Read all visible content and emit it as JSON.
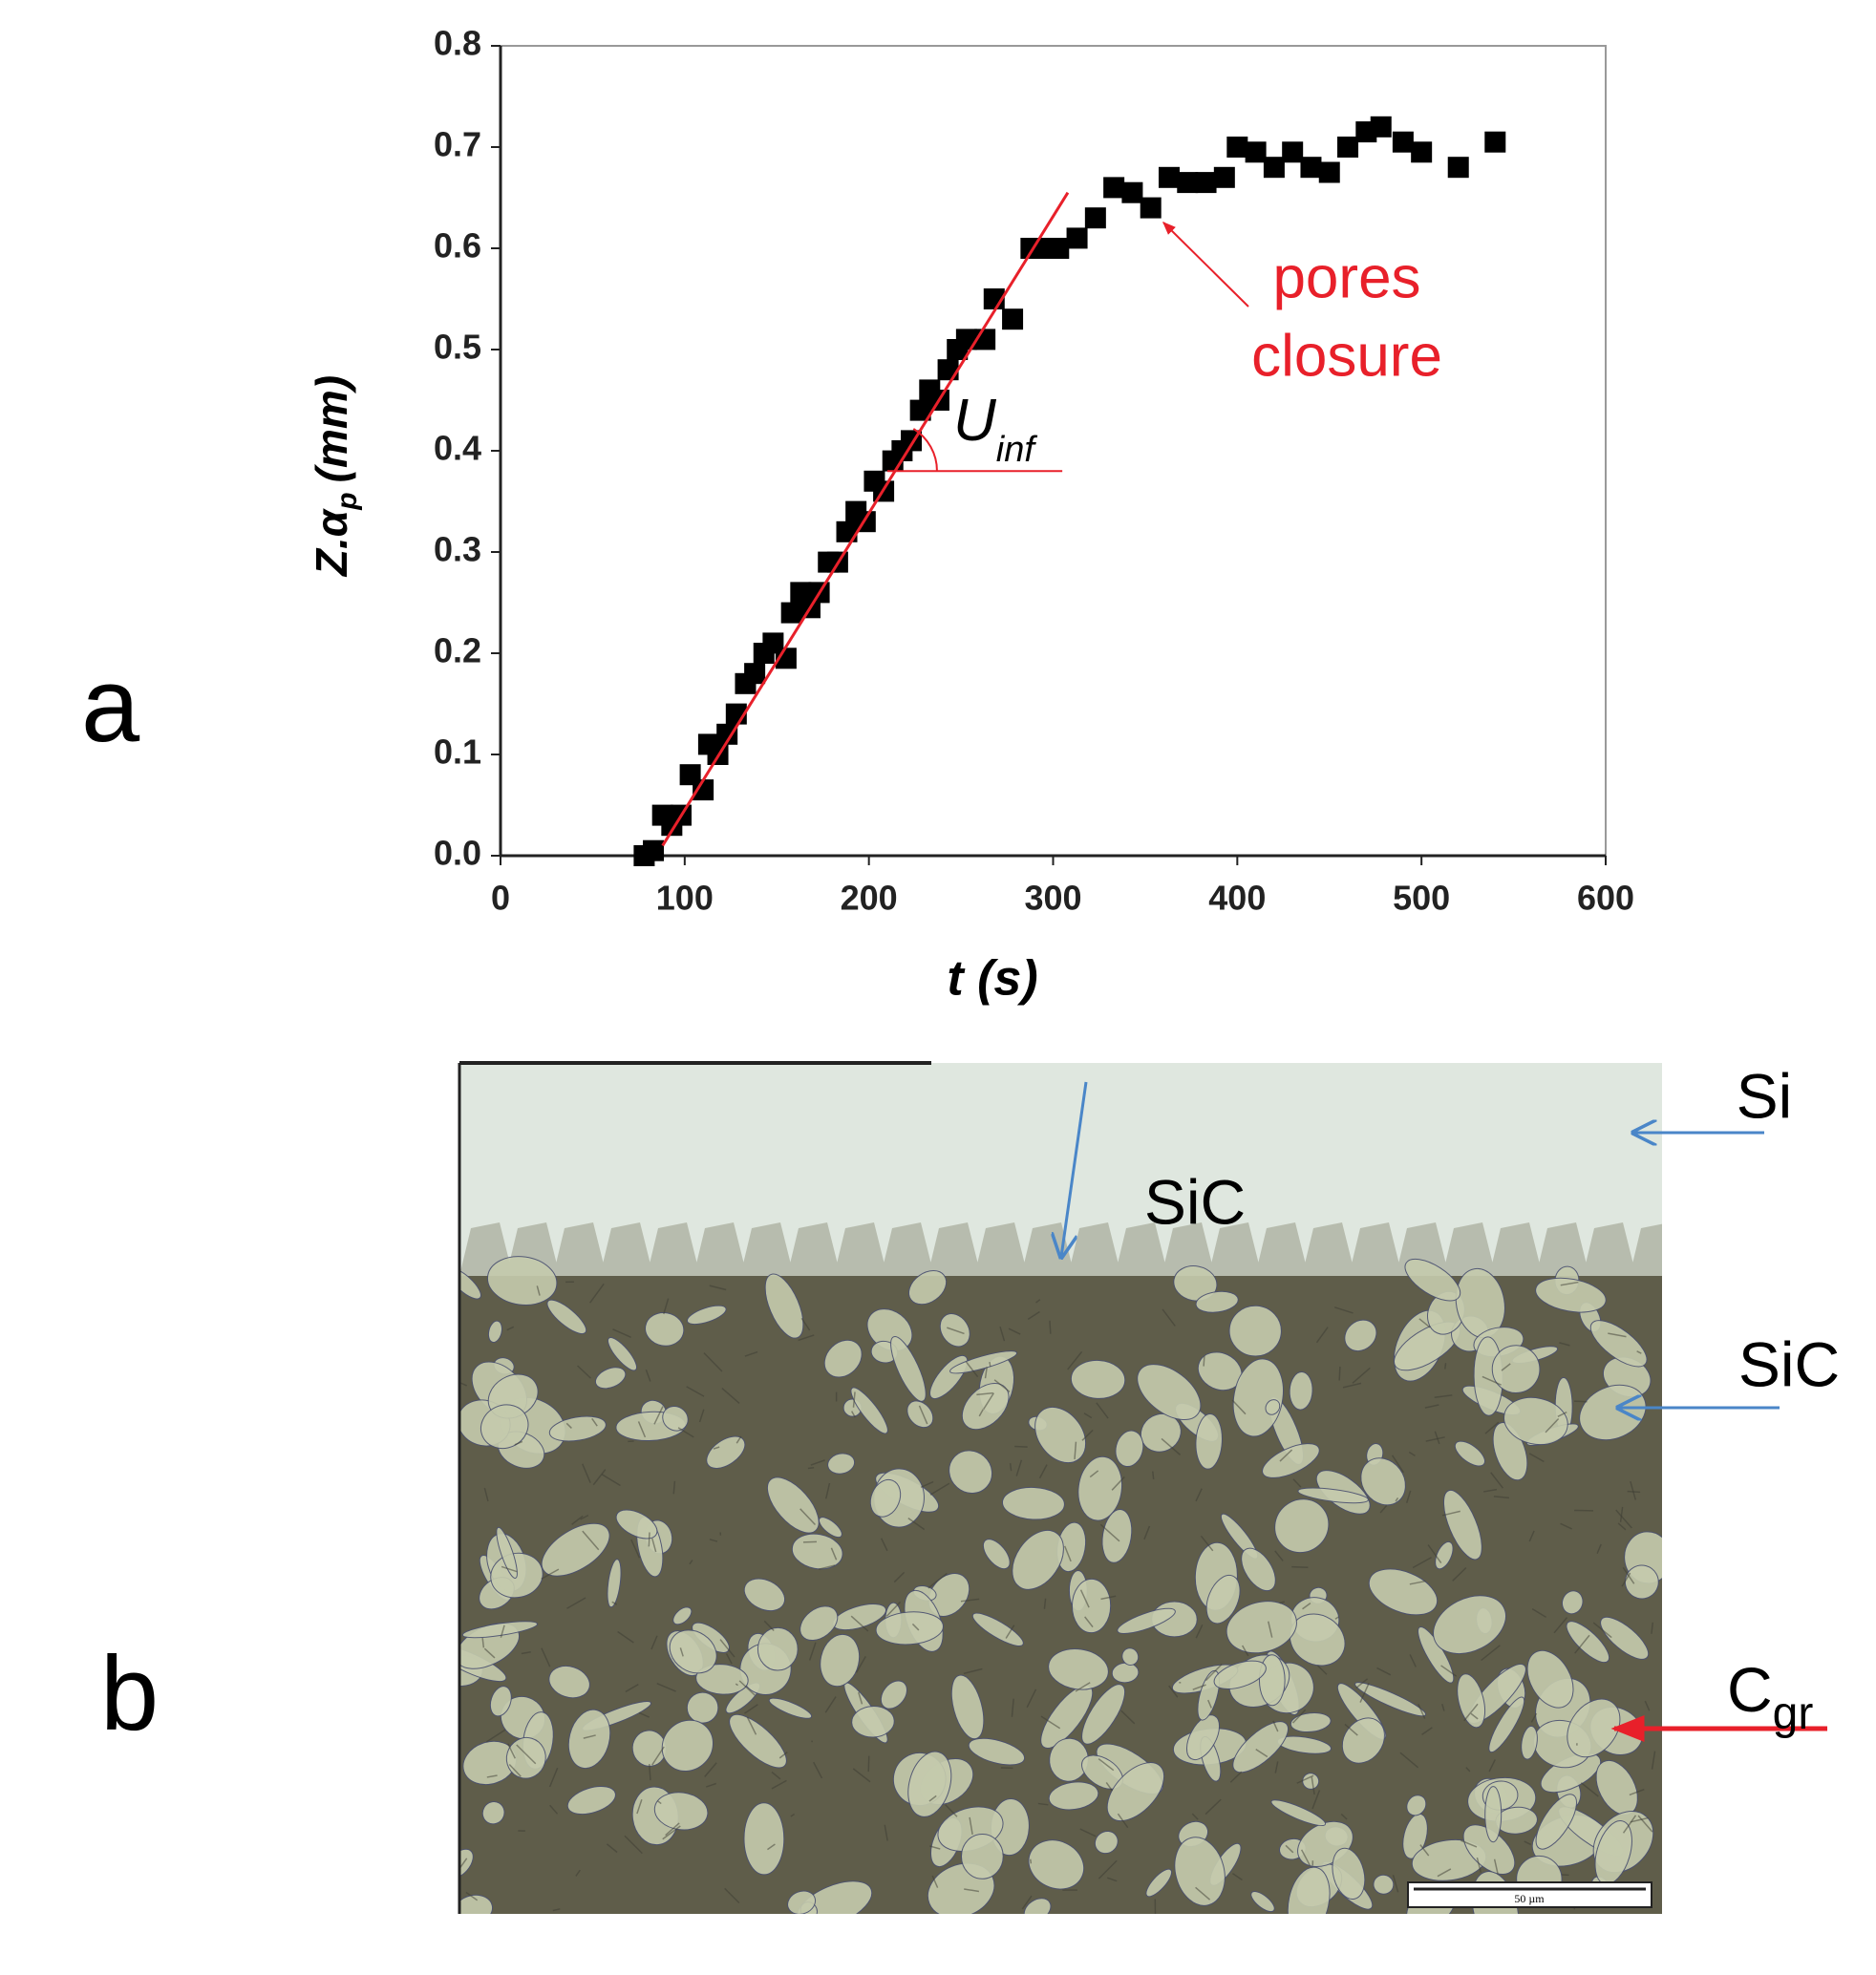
{
  "chart_data": {
    "type": "scatter",
    "panel_label": "a",
    "x_label": "t (s)",
    "y_label": {
      "main": "Z.α",
      "sub": "p",
      "unit": "(mm)"
    },
    "x": [
      78,
      83,
      88,
      93,
      98,
      103,
      110,
      113,
      118,
      123,
      128,
      133,
      138,
      143,
      148,
      155,
      158,
      163,
      168,
      173,
      178,
      183,
      188,
      193,
      198,
      203,
      208,
      213,
      218,
      223,
      228,
      233,
      238,
      243,
      248,
      253,
      263,
      268,
      278,
      288,
      298,
      303,
      313,
      323,
      333,
      343,
      353,
      363,
      373,
      383,
      393,
      400,
      410,
      420,
      430,
      440,
      450,
      460,
      470,
      478,
      490,
      500,
      520,
      540
    ],
    "values": [
      0.0,
      0.005,
      0.04,
      0.03,
      0.04,
      0.08,
      0.065,
      0.11,
      0.1,
      0.12,
      0.14,
      0.17,
      0.18,
      0.2,
      0.21,
      0.195,
      0.24,
      0.26,
      0.245,
      0.26,
      0.29,
      0.29,
      0.32,
      0.34,
      0.33,
      0.37,
      0.36,
      0.39,
      0.4,
      0.41,
      0.44,
      0.46,
      0.45,
      0.48,
      0.5,
      0.51,
      0.51,
      0.55,
      0.53,
      0.6,
      0.6,
      0.6,
      0.61,
      0.63,
      0.66,
      0.655,
      0.64,
      0.67,
      0.665,
      0.665,
      0.67,
      0.7,
      0.695,
      0.68,
      0.695,
      0.68,
      0.675,
      0.7,
      0.715,
      0.72,
      0.705,
      0.695,
      0.68,
      0.705
    ],
    "color": "#000000",
    "fit_line": {
      "x": [
        88,
        308
      ],
      "y": [
        0.01,
        0.655
      ],
      "color": "#e8202a"
    },
    "reference_line": {
      "x": [
        210,
        305
      ],
      "y": 0.38
    },
    "slope_label": {
      "main": "U",
      "sub": "inf"
    },
    "annotation": [
      "pores",
      "closure"
    ],
    "annotation_color": "#e8202a",
    "xlim": [
      0,
      600
    ],
    "xticks": [
      0,
      100,
      200,
      300,
      400,
      500,
      600
    ],
    "ylim": [
      0,
      0.8
    ],
    "yticks": [
      {
        "value": 0,
        "label": "0.0"
      },
      0.1,
      0.2,
      0.3,
      0.4,
      0.5,
      0.6,
      0.7,
      0.8
    ],
    "grid": false
  },
  "micrograph": {
    "panel_label": "b",
    "top_label": "SiC",
    "si_label": "Si",
    "sic_label": "SiC",
    "c_label": {
      "main": "C",
      "sub": "gr"
    },
    "scale_bar": "50 µm"
  }
}
